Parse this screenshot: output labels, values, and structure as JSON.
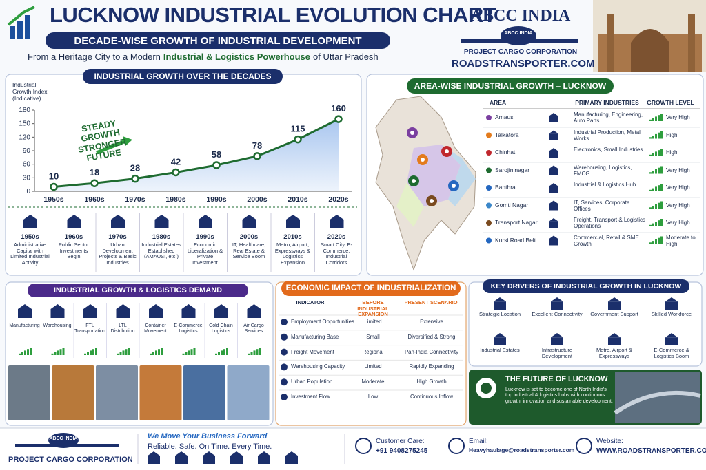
{
  "header": {
    "title": "LUCKNOW INDUSTRIAL EVOLUTION CHART",
    "subtitle": "DECADE-WISE GROWTH OF INDUSTRIAL DEVELOPMENT",
    "tagline_start": "From a Heritage City to a Modern",
    "tagline_highlight": "Industrial & Logistics Powerhouse",
    "tagline_end": "of Uttar Pradesh"
  },
  "brand": {
    "name": "ABCC INDIA",
    "logo_text": "ABCC INDIA",
    "company": "PROJECT CARGO CORPORATION",
    "website": "ROADSTRANSPORTER.COM"
  },
  "chart_data": {
    "type": "line",
    "title": "INDUSTRIAL GROWTH OVER THE DECADES",
    "y_label": "Industrial Growth Index (Indicative)",
    "annotation": "STEADY GROWTH STRONGER FUTURE",
    "categories": [
      "1950s",
      "1960s",
      "1970s",
      "1980s",
      "1990s",
      "2000s",
      "2010s",
      "2020s"
    ],
    "values": [
      10,
      18,
      28,
      42,
      58,
      78,
      115,
      160
    ],
    "color": "#1e6b30",
    "ylim": [
      0,
      180
    ],
    "yticks": [
      0,
      30,
      60,
      90,
      120,
      150,
      180
    ],
    "grid": false
  },
  "timeline": [
    {
      "decade": "1950s",
      "text": "Administrative Capital with Limited Industrial Activity"
    },
    {
      "decade": "1960s",
      "text": "Public Sector Investments Begin"
    },
    {
      "decade": "1970s",
      "text": "Urban Development Projects & Basic Industries"
    },
    {
      "decade": "1980s",
      "text": "Industrial Estates Established (AMAUSI, etc.)"
    },
    {
      "decade": "1990s",
      "text": "Economic Liberalization & Private Investment"
    },
    {
      "decade": "2000s",
      "text": "IT, Healthcare, Real Estate & Service Boom"
    },
    {
      "decade": "2010s",
      "text": "Metro, Airport, Expressways & Logistics Expansion"
    },
    {
      "decade": "2020s",
      "text": "Smart City, E-Commerce, Industrial Corridors"
    }
  ],
  "area_table": {
    "title": "AREA-WISE INDUSTRIAL GROWTH – LUCKNOW",
    "headers": [
      "AREA",
      "PRIMARY INDUSTRIES",
      "GROWTH LEVEL"
    ],
    "rows": [
      [
        "Amausi",
        "Manufacturing, Engineering, Auto Parts",
        "Very High"
      ],
      [
        "Talkatora",
        "Industrial Production, Metal Works",
        "High"
      ],
      [
        "Chinhat",
        "Electronics, Small Industries",
        "High"
      ],
      [
        "Sarojininagar",
        "Warehousing, Logistics, FMCG",
        "Very High"
      ],
      [
        "Banthra",
        "Industrial & Logistics Hub",
        "Very High"
      ],
      [
        "Gomti Nagar",
        "IT, Services, Corporate Offices",
        "Very High"
      ],
      [
        "Transport Nagar",
        "Freight, Transport & Logistics Operations",
        "Very High"
      ],
      [
        "Kursi Road Belt",
        "Commercial, Retail & SME Growth",
        "Moderate to High"
      ]
    ]
  },
  "logistics": {
    "title": "INDUSTRIAL GROWTH & LOGISTICS DEMAND",
    "items": [
      "Manufacturing",
      "Warehousing",
      "FTL Transportation",
      "LTL Distribution",
      "Container Movement",
      "E-Commerce Logistics",
      "Cold Chain Logistics",
      "Air Cargo Services"
    ]
  },
  "impact_table": {
    "title": "ECONOMIC IMPACT OF INDUSTRIALIZATION",
    "headers": [
      "INDICATOR",
      "BEFORE INDUSTRIAL EXPANSION",
      "PRESENT SCENARIO"
    ],
    "rows": [
      [
        "Employment Opportunities",
        "Limited",
        "Extensive"
      ],
      [
        "Manufacturing Base",
        "Small",
        "Diversified & Strong"
      ],
      [
        "Freight Movement",
        "Regional",
        "Pan-India Connectivity"
      ],
      [
        "Warehousing Capacity",
        "Limited",
        "Rapidly Expanding"
      ],
      [
        "Urban Population",
        "Moderate",
        "High Growth"
      ],
      [
        "Investment Flow",
        "Low",
        "Continuous Inflow"
      ]
    ]
  },
  "drivers": {
    "title": "KEY DRIVERS OF INDUSTRIAL GROWTH IN LUCKNOW",
    "items": [
      "Strategic Location",
      "Excellent Connectivity",
      "Government Support",
      "Skilled Workforce",
      "Industrial Estates",
      "Infrastructure Development",
      "Metro, Airport & Expressways",
      "E-Commerce & Logistics Boom"
    ]
  },
  "future": {
    "title": "THE FUTURE OF LUCKNOW",
    "text": "Lucknow is set to become one of North India's top industrial & logistics hubs with continuous growth, innovation and sustainable development."
  },
  "footer": {
    "logo_text": "ABCC INDIA",
    "company": "PROJECT CARGO CORPORATION",
    "slogan": "We Move Your Business Forward",
    "promise": "Reliable. Safe. On Time. Every Time.",
    "contacts": [
      {
        "label": "Customer Care:",
        "value": "+91 9408275245"
      },
      {
        "label": "Email:",
        "value": "Heavyhaulage@roadstransporter.com"
      },
      {
        "label": "Website:",
        "value": "WWW.ROADSTRANSPORTER.COM"
      }
    ]
  }
}
